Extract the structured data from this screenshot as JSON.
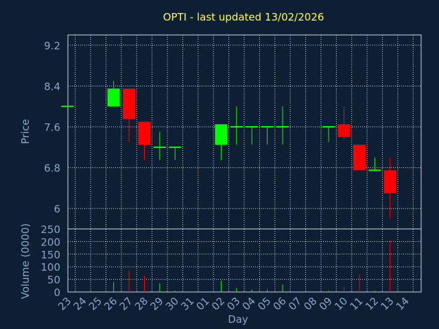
{
  "chart_data": [
    {
      "type": "candlestick",
      "title": "OPTI - last updated 13/02/2026",
      "ylabel": "Price",
      "ylim": [
        5.6,
        9.4
      ],
      "yticks": [
        "9.2",
        "8.4",
        "7.6",
        "6.8",
        "6"
      ],
      "ytick_values": [
        9.2,
        8.4,
        7.6,
        6.8,
        6.0
      ],
      "grid": true,
      "categories": [
        "23",
        "24",
        "25",
        "26",
        "27",
        "28",
        "29",
        "30",
        "31",
        "01",
        "02",
        "03",
        "04",
        "05",
        "06",
        "07",
        "08",
        "09",
        "10",
        "11",
        "12",
        "13",
        "14"
      ],
      "colors": {
        "up": "#00ff00",
        "down": "#ff0000",
        "flat": "#00ff00"
      },
      "candles": [
        {
          "day": "23",
          "open": 8.0,
          "high": 8.0,
          "low": 8.0,
          "close": 8.0
        },
        {
          "day": "26",
          "open": 8.0,
          "high": 8.5,
          "low": 8.0,
          "close": 8.35
        },
        {
          "day": "27",
          "open": 8.35,
          "high": 8.35,
          "low": 7.3,
          "close": 7.75
        },
        {
          "day": "28",
          "open": 7.7,
          "high": 7.7,
          "low": 6.95,
          "close": 7.25
        },
        {
          "day": "29",
          "open": 7.2,
          "high": 7.5,
          "low": 6.95,
          "close": 7.2
        },
        {
          "day": "30",
          "open": 7.2,
          "high": 7.2,
          "low": 6.95,
          "close": 7.2
        },
        {
          "day": "02",
          "open": 7.25,
          "high": 7.65,
          "low": 6.95,
          "close": 7.65
        },
        {
          "day": "03",
          "open": 7.6,
          "high": 8.0,
          "low": 7.25,
          "close": 7.6
        },
        {
          "day": "04",
          "open": 7.6,
          "high": 7.6,
          "low": 7.25,
          "close": 7.6
        },
        {
          "day": "05",
          "open": 7.6,
          "high": 7.6,
          "low": 7.25,
          "close": 7.6
        },
        {
          "day": "06",
          "open": 7.6,
          "high": 8.0,
          "low": 7.25,
          "close": 7.6
        },
        {
          "day": "09",
          "open": 7.6,
          "high": 7.6,
          "low": 7.3,
          "close": 7.6
        },
        {
          "day": "10",
          "open": 7.65,
          "high": 8.0,
          "low": 7.35,
          "close": 7.4
        },
        {
          "day": "11",
          "open": 7.25,
          "high": 7.25,
          "low": 6.75,
          "close": 6.75
        },
        {
          "day": "12",
          "open": 6.75,
          "high": 7.0,
          "low": 6.75,
          "close": 6.75
        },
        {
          "day": "13",
          "open": 6.75,
          "high": 7.0,
          "low": 5.8,
          "close": 6.3
        }
      ]
    },
    {
      "type": "bar",
      "xlabel": "Day",
      "ylabel": "Volume (0000)",
      "ylim": [
        0,
        250
      ],
      "yticks": [
        "250",
        "200",
        "150",
        "100",
        "50",
        "0"
      ],
      "ytick_values": [
        250,
        200,
        150,
        100,
        50,
        0
      ],
      "grid": true,
      "categories": [
        "23",
        "24",
        "25",
        "26",
        "27",
        "28",
        "29",
        "30",
        "31",
        "01",
        "02",
        "03",
        "04",
        "05",
        "06",
        "07",
        "08",
        "09",
        "10",
        "11",
        "12",
        "13",
        "14"
      ],
      "bars": [
        {
          "day": "26",
          "value": 40,
          "color": "#00ff00"
        },
        {
          "day": "27",
          "value": 85,
          "color": "#ff0000"
        },
        {
          "day": "28",
          "value": 65,
          "color": "#ff0000"
        },
        {
          "day": "29",
          "value": 35,
          "color": "#00ff00"
        },
        {
          "day": "30",
          "value": 5,
          "color": "#00ff00"
        },
        {
          "day": "02",
          "value": 45,
          "color": "#00ff00"
        },
        {
          "day": "03",
          "value": 15,
          "color": "#00ff00"
        },
        {
          "day": "04",
          "value": 10,
          "color": "#00ff00"
        },
        {
          "day": "05",
          "value": 10,
          "color": "#00ff00"
        },
        {
          "day": "06",
          "value": 30,
          "color": "#00ff00"
        },
        {
          "day": "09",
          "value": 5,
          "color": "#00ff00"
        },
        {
          "day": "10",
          "value": 20,
          "color": "#ff0000"
        },
        {
          "day": "11",
          "value": 70,
          "color": "#ff0000"
        },
        {
          "day": "12",
          "value": 5,
          "color": "#00ff00"
        },
        {
          "day": "13",
          "value": 205,
          "color": "#ff0000"
        }
      ]
    }
  ]
}
